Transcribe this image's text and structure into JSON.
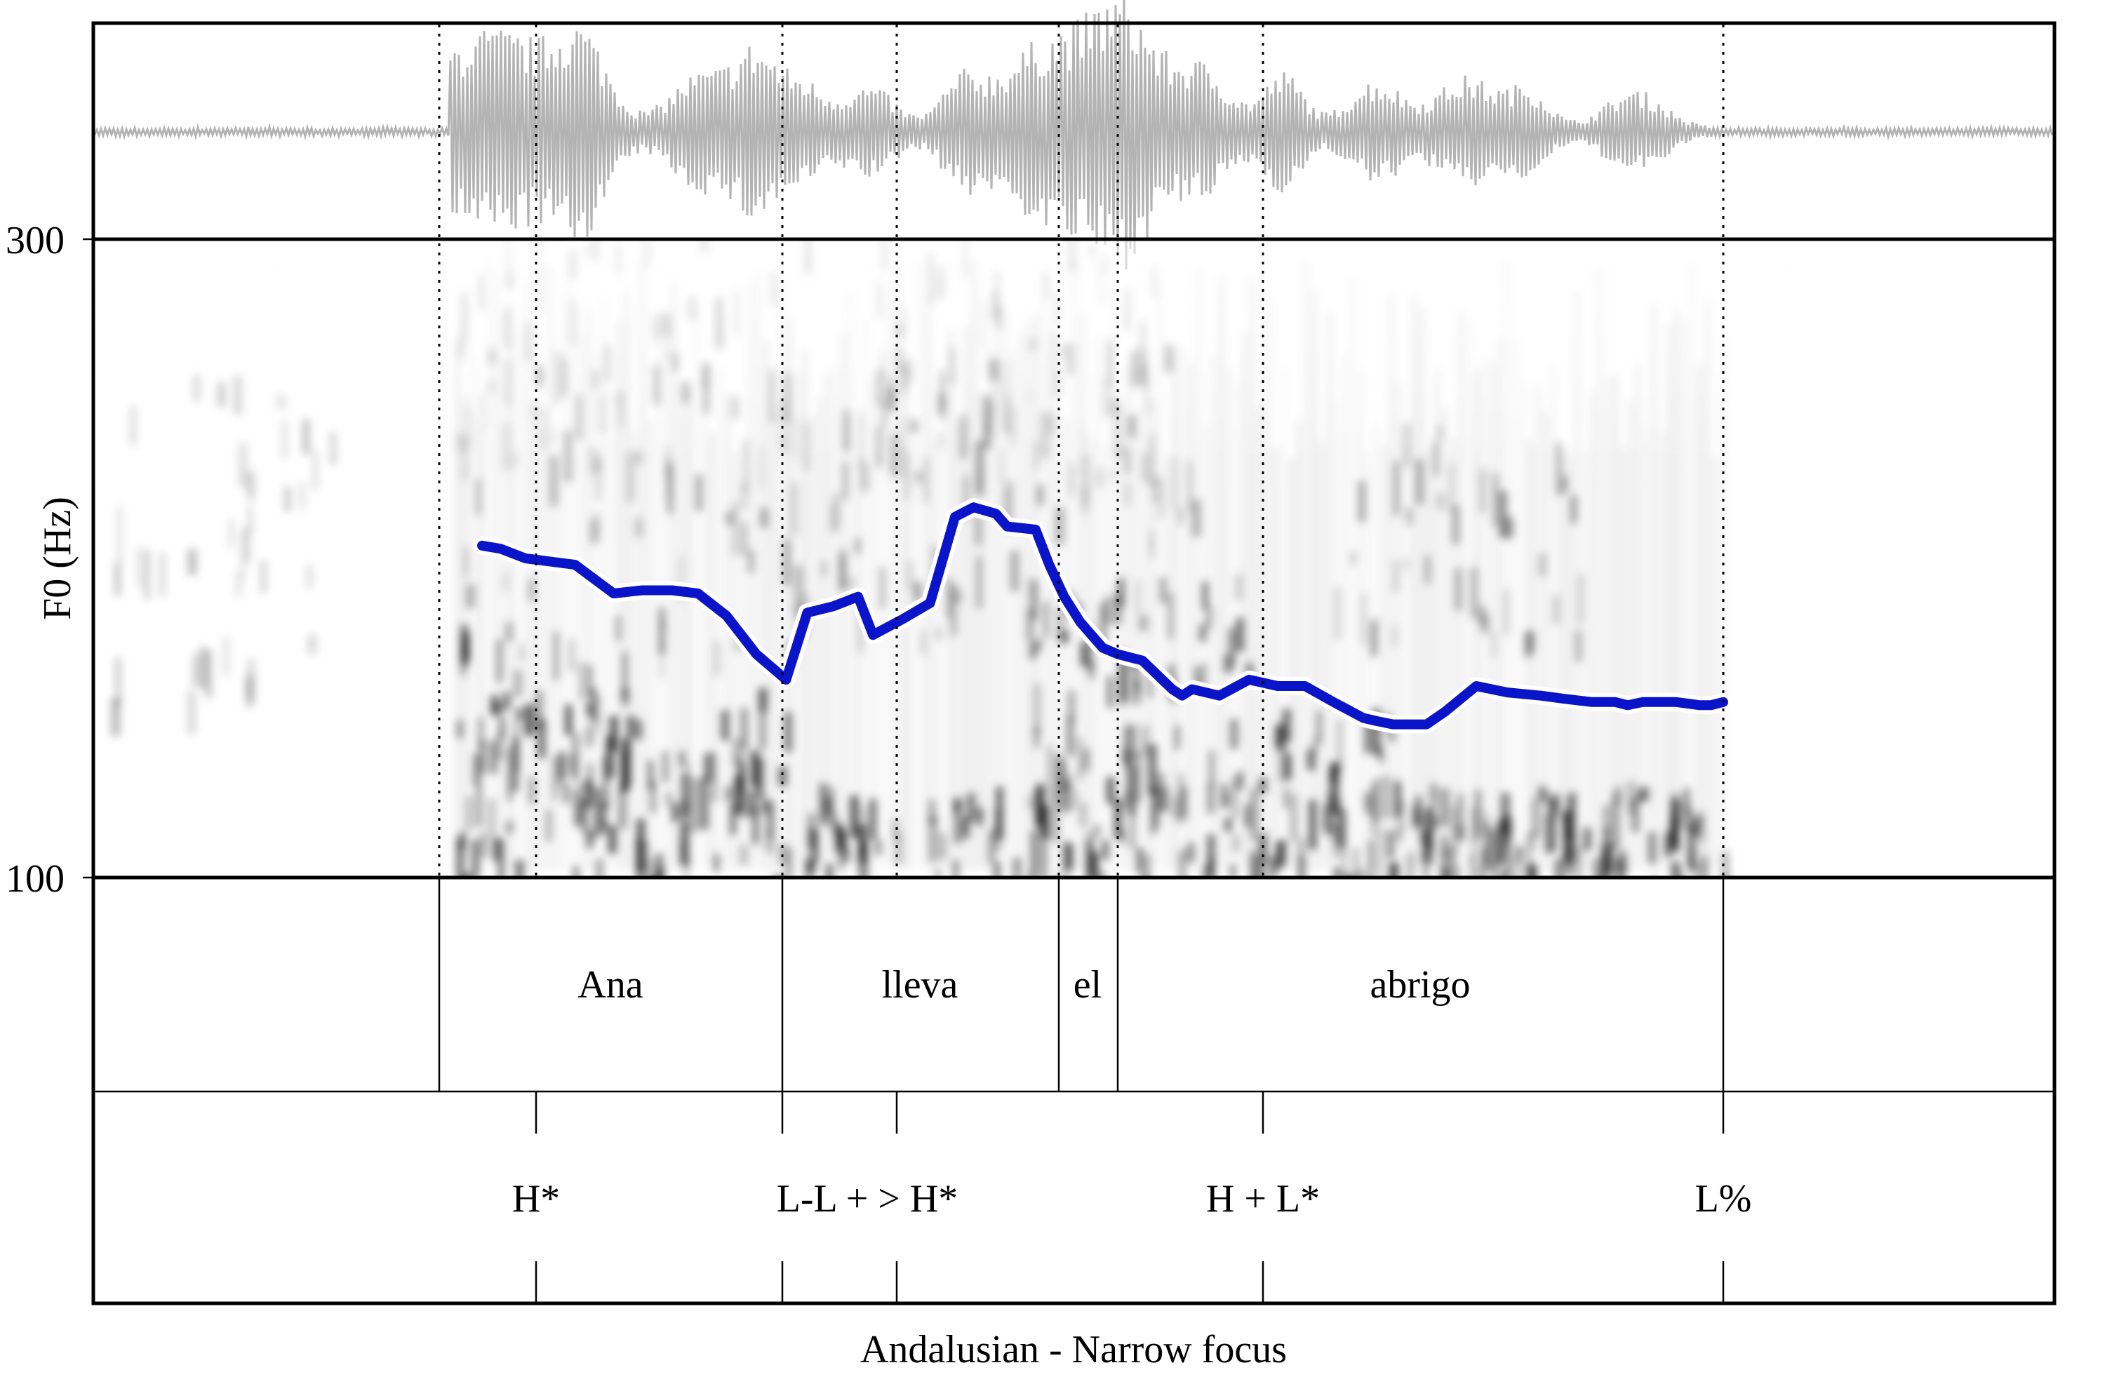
{
  "chart_data": {
    "type": "line",
    "title": "Andalusian - Narrow focus",
    "ylabel": "F0 (Hz)",
    "ylim": [
      100,
      300
    ],
    "yticks": [
      100,
      300
    ],
    "xlim": [
      0,
      100
    ],
    "series": [
      {
        "color": "#0a14c8",
        "x": [
          0,
          1.5,
          3.5,
          7.5,
          10.6,
          12.9,
          15.3,
          17.4,
          19.7,
          22.1,
          24.5,
          26.2,
          28.3,
          30.3,
          31.5,
          33.9,
          36.1,
          38.1,
          39.6,
          41.4,
          42.3,
          44.6,
          45.7,
          46.9,
          48.2,
          50.0,
          51.2,
          53.2,
          55.6,
          56.4,
          57.2,
          59.4,
          61.8,
          64.1,
          66.3,
          68.6,
          71.0,
          72.1,
          73.4,
          76.1,
          77.6,
          80.1,
          82.6,
          85.3,
          87.2,
          89.4,
          91.3,
          92.3,
          93.5,
          95.0,
          96.2,
          98.1,
          99.0,
          100.0
        ],
        "y": [
          204,
          203,
          200,
          198,
          189,
          190,
          190,
          189,
          182,
          170,
          162,
          183,
          185,
          188,
          176,
          181,
          186,
          213,
          216,
          214,
          210,
          209,
          198,
          188,
          180,
          172,
          170,
          168,
          159,
          157,
          159,
          157,
          162,
          160,
          160,
          155,
          150,
          149,
          148,
          148,
          152,
          160,
          158,
          157,
          156,
          155,
          155,
          154,
          155,
          155,
          155,
          154,
          154,
          155
        ]
      }
    ]
  },
  "word_tier": [
    "Ana",
    "lleva",
    "el",
    "abrigo"
  ],
  "tone_tier": [
    "H*",
    "L-L + > H*",
    "H + L*",
    "L%"
  ],
  "colors": {
    "f0_track": "#0a14c8",
    "waveform": "#b3b3b3",
    "spectrogram": "#000000"
  }
}
